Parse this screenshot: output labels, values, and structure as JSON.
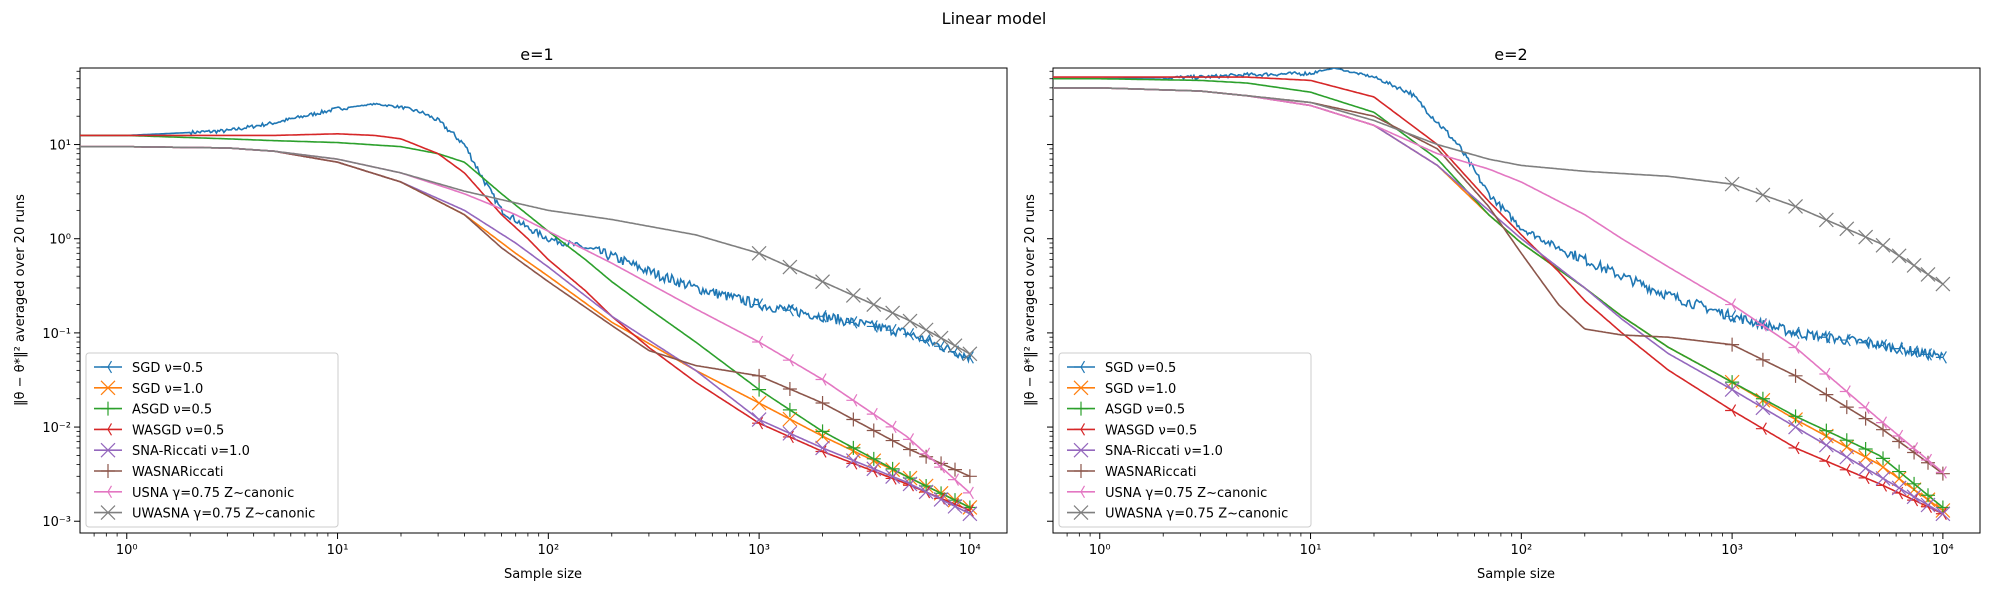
{
  "figure": {
    "title": "Linear model"
  },
  "colors": [
    "#1f77b4",
    "#ff7f0e",
    "#2ca02c",
    "#d62728",
    "#9467bd",
    "#8c564b",
    "#e377c2",
    "#7f7f7f"
  ],
  "chart_data": [
    {
      "type": "line",
      "title": "e=1",
      "xlabel": "Sample size",
      "ylabel": "‖θ − θ*‖² averaged over 20 runs",
      "xscale": "log",
      "yscale": "log",
      "xlim": [
        0.6,
        15000
      ],
      "ylim": [
        0.00075,
        65
      ],
      "xticks": [
        1,
        10,
        100,
        1000,
        10000
      ],
      "xtick_labels": [
        "10⁰",
        "10¹",
        "10²",
        "10³",
        "10⁴"
      ],
      "yticks": [
        0.001,
        0.01,
        0.1,
        1,
        10
      ],
      "ytick_labels": [
        "10⁻³",
        "10⁻²",
        "10⁻¹",
        "10⁰",
        "10¹"
      ],
      "legend_position": "lower-left",
      "series": [
        {
          "name": "SGD ν=0.5",
          "marker": "tri",
          "noise": 0.2,
          "x": [
            1,
            3,
            5,
            10,
            15,
            20,
            25,
            30,
            40,
            50,
            60,
            80,
            100,
            150,
            200,
            300,
            500,
            1000,
            2000,
            5000,
            10000
          ],
          "y": [
            12.5,
            14,
            17,
            24,
            27,
            25,
            22,
            18,
            10,
            4,
            2,
            1.3,
            1.0,
            0.8,
            0.65,
            0.45,
            0.3,
            0.2,
            0.15,
            0.1,
            0.055
          ]
        },
        {
          "name": "SGD ν=1.0",
          "marker": "x",
          "x": [
            1,
            3,
            5,
            10,
            20,
            40,
            70,
            100,
            200,
            500,
            1000,
            2000,
            5000,
            10000
          ],
          "y": [
            9.5,
            9.2,
            8.5,
            6.5,
            4,
            1.8,
            0.7,
            0.4,
            0.13,
            0.04,
            0.018,
            0.008,
            0.003,
            0.0014
          ]
        },
        {
          "name": "ASGD ν=0.5",
          "marker": "plus",
          "x": [
            1,
            3,
            5,
            10,
            20,
            30,
            40,
            60,
            100,
            150,
            200,
            300,
            500,
            1000,
            2000,
            5000,
            10000
          ],
          "y": [
            12.5,
            11.5,
            11,
            10.5,
            9.5,
            8,
            6.5,
            3,
            1.2,
            0.6,
            0.35,
            0.18,
            0.08,
            0.025,
            0.009,
            0.003,
            0.0014
          ]
        },
        {
          "name": "WASGD ν=0.5",
          "marker": "tri",
          "x": [
            1,
            3,
            5,
            10,
            15,
            20,
            30,
            40,
            60,
            80,
            100,
            150,
            200,
            300,
            500,
            1000,
            2000,
            5000,
            10000
          ],
          "y": [
            12.5,
            12.5,
            12.5,
            13,
            12.5,
            11.5,
            8,
            5,
            1.8,
            1.0,
            0.6,
            0.28,
            0.15,
            0.07,
            0.03,
            0.011,
            0.0055,
            0.0025,
            0.0013
          ]
        },
        {
          "name": "SNA-Riccati ν=1.0",
          "marker": "x",
          "x": [
            1,
            3,
            5,
            10,
            20,
            40,
            70,
            100,
            200,
            500,
            1000,
            2000,
            5000,
            10000
          ],
          "y": [
            9.5,
            9.2,
            8.5,
            6.5,
            4,
            2,
            0.9,
            0.5,
            0.15,
            0.04,
            0.012,
            0.006,
            0.0026,
            0.0012
          ]
        },
        {
          "name": "WASNARiccati",
          "marker": "plus",
          "x": [
            1,
            3,
            5,
            10,
            20,
            40,
            60,
            100,
            200,
            300,
            500,
            1000,
            2000,
            5000,
            10000
          ],
          "y": [
            9.5,
            9.2,
            8.5,
            6.5,
            4,
            1.8,
            0.8,
            0.35,
            0.12,
            0.065,
            0.045,
            0.035,
            0.018,
            0.006,
            0.003
          ]
        },
        {
          "name": "USNA γ=0.75 Z~canonic",
          "marker": "tri",
          "x": [
            1,
            3,
            5,
            10,
            20,
            40,
            70,
            100,
            200,
            500,
            1000,
            2000,
            5000,
            10000
          ],
          "y": [
            9.5,
            9.2,
            8.5,
            7,
            5,
            3,
            1.8,
            1.2,
            0.55,
            0.18,
            0.08,
            0.032,
            0.008,
            0.002
          ]
        },
        {
          "name": "UWASNA γ=0.75 Z~canonic",
          "marker": "x",
          "x": [
            1,
            3,
            5,
            10,
            20,
            40,
            70,
            100,
            200,
            500,
            1000,
            2000,
            5000,
            10000
          ],
          "y": [
            9.5,
            9.2,
            8.5,
            7,
            5,
            3.2,
            2.4,
            2.0,
            1.6,
            1.1,
            0.7,
            0.35,
            0.14,
            0.06
          ]
        }
      ]
    },
    {
      "type": "line",
      "title": "e=2",
      "xlabel": "Sample size",
      "ylabel": "‖θ − θ*‖² averaged over 20 runs",
      "xscale": "log",
      "yscale": "log",
      "xlim": [
        0.6,
        15000
      ],
      "ylim": [
        0.00075,
        65
      ],
      "xticks": [
        1,
        10,
        100,
        1000,
        10000
      ],
      "xtick_labels": [
        "10⁰",
        "10¹",
        "10²",
        "10³",
        "10⁴"
      ],
      "yticks": [
        0.001,
        0.01,
        0.1,
        1,
        10
      ],
      "ytick_labels": [
        "10⁻³",
        "10⁻²",
        "10⁻¹",
        "10⁰",
        "10¹"
      ],
      "legend_position": "lower-left",
      "series": [
        {
          "name": "SGD ν=0.5",
          "marker": "tri",
          "noise": 0.2,
          "x": [
            1,
            3,
            5,
            10,
            13,
            15,
            20,
            30,
            50,
            70,
            100,
            150,
            200,
            300,
            500,
            1000,
            2000,
            5000,
            10000
          ],
          "y": [
            50,
            52,
            55,
            57,
            65,
            60,
            52,
            35,
            10,
            3,
            1.3,
            0.8,
            0.6,
            0.4,
            0.25,
            0.15,
            0.1,
            0.075,
            0.055
          ]
        },
        {
          "name": "SGD ν=1.0",
          "marker": "x",
          "x": [
            1,
            3,
            5,
            10,
            20,
            40,
            70,
            100,
            200,
            300,
            500,
            1000,
            2000,
            5000,
            10000
          ],
          "y": [
            40,
            37,
            33,
            26,
            16,
            6,
            1.8,
            0.9,
            0.3,
            0.15,
            0.07,
            0.03,
            0.012,
            0.004,
            0.0013
          ]
        },
        {
          "name": "ASGD ν=0.5",
          "marker": "plus",
          "x": [
            1,
            3,
            5,
            10,
            20,
            40,
            70,
            100,
            200,
            300,
            500,
            1000,
            2000,
            5000,
            10000
          ],
          "y": [
            50,
            48,
            45,
            36,
            22,
            7,
            1.8,
            0.9,
            0.3,
            0.15,
            0.07,
            0.03,
            0.013,
            0.005,
            0.0014
          ]
        },
        {
          "name": "WASGD ν=0.5",
          "marker": "tri",
          "x": [
            1,
            3,
            5,
            10,
            20,
            40,
            70,
            100,
            150,
            200,
            300,
            500,
            1000,
            2000,
            5000,
            10000
          ],
          "y": [
            52,
            52,
            52,
            48,
            32,
            10,
            2.5,
            1.1,
            0.45,
            0.22,
            0.1,
            0.04,
            0.015,
            0.006,
            0.0025,
            0.0012
          ]
        },
        {
          "name": "SNA-Riccati ν=1.0",
          "marker": "x",
          "x": [
            1,
            3,
            5,
            10,
            20,
            40,
            70,
            100,
            200,
            300,
            500,
            1000,
            2000,
            5000,
            10000
          ],
          "y": [
            40,
            37,
            33,
            26,
            16,
            6,
            2,
            1.0,
            0.3,
            0.14,
            0.06,
            0.025,
            0.01,
            0.003,
            0.0012
          ]
        },
        {
          "name": "WASNARiccati",
          "marker": "plus",
          "x": [
            1,
            3,
            5,
            10,
            20,
            40,
            70,
            100,
            150,
            200,
            300,
            500,
            1000,
            2000,
            5000,
            10000
          ],
          "y": [
            40,
            37,
            33,
            28,
            20,
            9,
            2.2,
            0.7,
            0.2,
            0.11,
            0.095,
            0.09,
            0.075,
            0.035,
            0.01,
            0.0032
          ]
        },
        {
          "name": "USNA γ=0.75 Z~canonic",
          "marker": "tri",
          "x": [
            1,
            3,
            5,
            10,
            20,
            40,
            70,
            100,
            200,
            300,
            500,
            1000,
            2000,
            5000,
            10000
          ],
          "y": [
            40,
            37,
            33,
            26,
            16,
            8,
            5.5,
            4,
            1.8,
            1.0,
            0.5,
            0.2,
            0.07,
            0.012,
            0.0033
          ]
        },
        {
          "name": "UWASNA γ=0.75 Z~canonic",
          "marker": "x",
          "x": [
            1,
            3,
            5,
            10,
            20,
            40,
            70,
            100,
            200,
            500,
            1000,
            2000,
            5000,
            10000
          ],
          "y": [
            40,
            37,
            33,
            28,
            18,
            10,
            7,
            6,
            5.2,
            4.6,
            3.8,
            2.2,
            0.9,
            0.33
          ]
        }
      ]
    }
  ]
}
